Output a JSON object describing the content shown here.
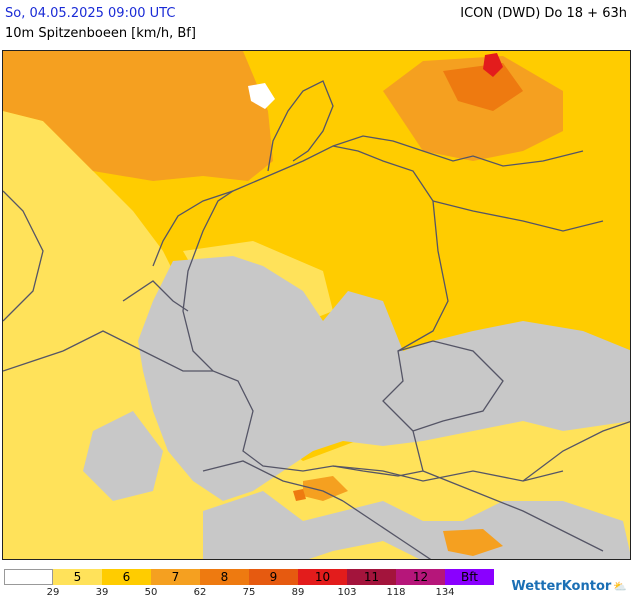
{
  "header": {
    "datetime": "So, 04.05.2025 09:00 UTC",
    "parameter": "10m Spitzenboeen [km/h, Bf]",
    "model": "ICON (DWD) Do 18 + 63h"
  },
  "colors": {
    "grey": "#c8c8c8",
    "bf5": "#ffe25a",
    "bf6": "#ffcc00",
    "bf7": "#f5a020",
    "bf8": "#ee7a10",
    "bf9": "#e65a10",
    "bf10": "#e31c1c",
    "border": "#555566"
  },
  "legend": {
    "boxes": [
      {
        "label": "",
        "color": "#ffffff",
        "text": "#000000"
      },
      {
        "label": "5",
        "color": "#ffe25a",
        "text": "#000000"
      },
      {
        "label": "6",
        "color": "#ffcc00",
        "text": "#000000"
      },
      {
        "label": "7",
        "color": "#f5a020",
        "text": "#000000"
      },
      {
        "label": "8",
        "color": "#ee7a10",
        "text": "#000000"
      },
      {
        "label": "9",
        "color": "#e65a10",
        "text": "#000000"
      },
      {
        "label": "10",
        "color": "#e31c1c",
        "text": "#000000"
      },
      {
        "label": "11",
        "color": "#a3143c",
        "text": "#000000"
      },
      {
        "label": "12",
        "color": "#b6167a",
        "text": "#000000"
      },
      {
        "label": "Bft",
        "color": "#8a00ff",
        "text": "#000000"
      }
    ],
    "ticks": [
      "29",
      "39",
      "50",
      "62",
      "75",
      "89",
      "103",
      "118",
      "134"
    ]
  },
  "logo": {
    "text": "WetterKontor"
  }
}
